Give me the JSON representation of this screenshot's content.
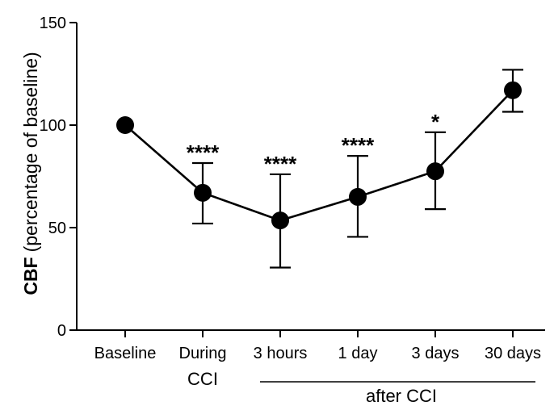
{
  "chart_data": {
    "type": "line",
    "title": "",
    "ylabel_bold": "CBF",
    "ylabel_rest": "(percentage of baseline)",
    "xlabel": "",
    "ylim": [
      0,
      150
    ],
    "yticks": [
      0,
      50,
      100,
      150
    ],
    "categories": [
      "Baseline",
      "During",
      "3 hours",
      "1 day",
      "3 days",
      "30 days"
    ],
    "series": [
      {
        "name": "CBF",
        "values": [
          100,
          67,
          53.5,
          65,
          77.5,
          117
        ],
        "err_low": [
          100,
          52,
          30.5,
          45.5,
          59,
          106.5
        ],
        "err_high": [
          100,
          81.5,
          76,
          85,
          96.5,
          127
        ]
      }
    ],
    "annotations": [
      "",
      "****",
      "****",
      "****",
      "*",
      ""
    ],
    "group_labels": [
      {
        "label": "CCI",
        "from": 1,
        "to": 1
      },
      {
        "label": "after CCI",
        "from": 2,
        "to": 5
      }
    ]
  }
}
